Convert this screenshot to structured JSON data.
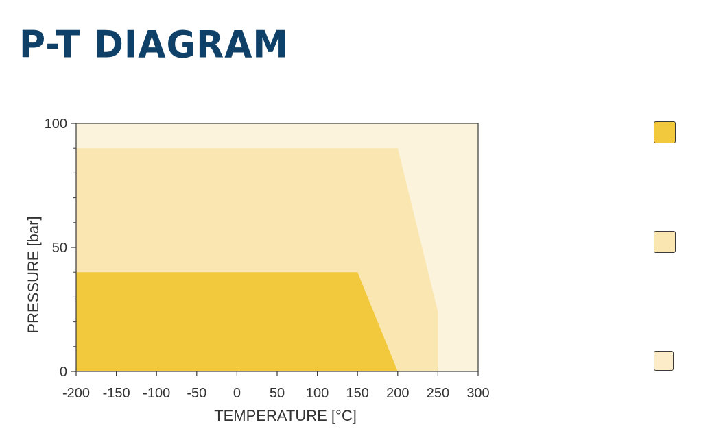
{
  "title": "P-T DIAGRAM",
  "chart_data": {
    "type": "area",
    "xlabel": "TEMPERATURE [°C]",
    "ylabel": "PRESSURE [bar]",
    "xlim": [
      -200,
      300
    ],
    "ylim": [
      0,
      100
    ],
    "x_ticks": [
      -200,
      -150,
      -100,
      -50,
      0,
      50,
      100,
      150,
      200,
      250,
      300
    ],
    "x_minor_step": 50,
    "y_ticks": [
      0,
      50,
      100
    ],
    "y_minor_step": 10,
    "grid": false,
    "background_color": "#fcf3dd",
    "series": [
      {
        "color": "#f9e6b0",
        "points": [
          [
            -200,
            0
          ],
          [
            -200,
            90
          ],
          [
            200,
            90
          ],
          [
            250,
            24
          ],
          [
            250,
            0
          ]
        ]
      },
      {
        "color": "#f2c93d",
        "points": [
          [
            -200,
            0
          ],
          [
            -200,
            40
          ],
          [
            150,
            40
          ],
          [
            200,
            0
          ]
        ]
      }
    ],
    "legend": {
      "placement": "right",
      "swatches": [
        {
          "color": "#f2c93d"
        },
        {
          "color": "#f9e6b0"
        },
        {
          "color": "#fcedc8"
        }
      ]
    }
  }
}
